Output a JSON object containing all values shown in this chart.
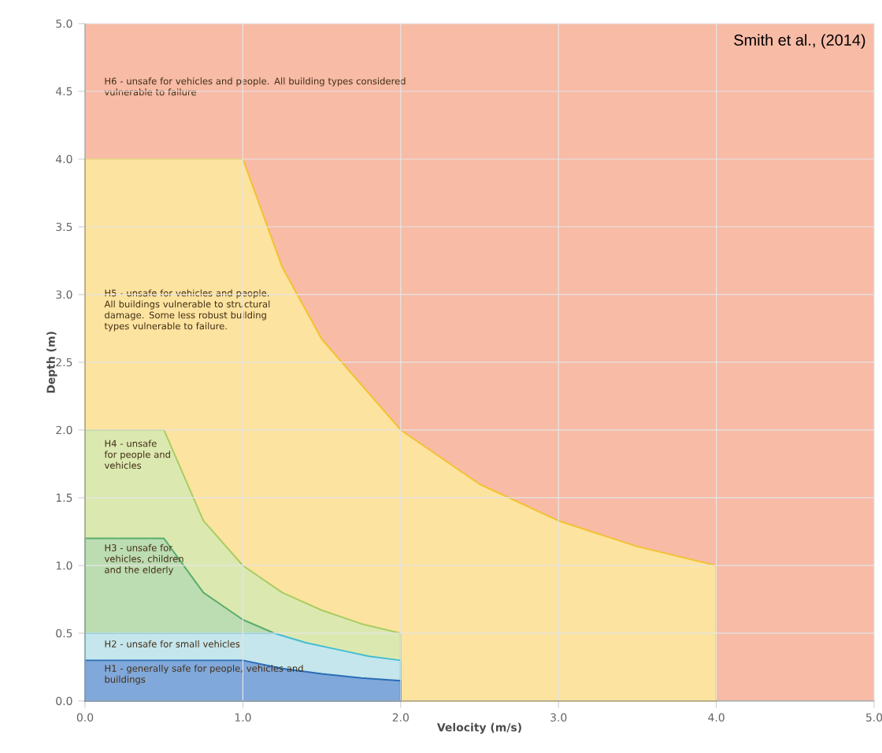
{
  "chart_data": {
    "type": "area",
    "xlabel": "Velocity (m/s)",
    "ylabel": "Depth (m)",
    "xlim": [
      0,
      5
    ],
    "ylim": [
      0,
      5
    ],
    "xticks": [
      {
        "value": 0,
        "label": "0.0"
      },
      {
        "value": 1,
        "label": "1.0"
      },
      {
        "value": 2,
        "label": "2.0"
      },
      {
        "value": 3,
        "label": "3.0"
      },
      {
        "value": 4,
        "label": "4.0"
      },
      {
        "value": 5,
        "label": "5.0"
      }
    ],
    "yticks": [
      {
        "value": 0,
        "label": "0.0"
      },
      {
        "value": 0.5,
        "label": "0.5"
      },
      {
        "value": 1,
        "label": "1.0"
      },
      {
        "value": 1.5,
        "label": "1.5"
      },
      {
        "value": 2,
        "label": "2.0"
      },
      {
        "value": 2.5,
        "label": "2.5"
      },
      {
        "value": 3,
        "label": "3.0"
      },
      {
        "value": 3.5,
        "label": "3.5"
      },
      {
        "value": 4,
        "label": "4.0"
      },
      {
        "value": 4.5,
        "label": "4.5"
      },
      {
        "value": 5,
        "label": "5.0"
      }
    ],
    "grid": true,
    "bands": [
      {
        "axis": "y",
        "from": 0,
        "to": 5,
        "color": "#f7bba6",
        "label": "H6 - unsafe for vehicles and people. All building types considered vulnerable to failure"
      }
    ],
    "series": [
      {
        "color": "#fce39f",
        "x": [
          0,
          1,
          1.25,
          1.5,
          2,
          2.5,
          3,
          3.5,
          4,
          4
        ],
        "values": [
          4,
          4,
          3.2,
          2.67,
          2,
          1.6,
          1.33,
          1.14,
          1,
          0
        ]
      },
      {
        "color": "#dbe9b0",
        "x": [
          0,
          0.5,
          0.75,
          1,
          1.25,
          1.5,
          1.75,
          2,
          2
        ],
        "values": [
          2,
          2,
          1.33,
          1,
          0.8,
          0.67,
          0.57,
          0.5,
          0
        ]
      },
      {
        "color": "#bcdcb2",
        "x": [
          0,
          0.5,
          0.75,
          1,
          1.2
        ],
        "values": [
          1.2,
          1.2,
          0.8,
          0.6,
          0.5
        ]
      },
      {
        "color": "#c4e6ec",
        "x": [
          0,
          1.2,
          1.4,
          1.6,
          1.8,
          2,
          2
        ],
        "values": [
          0.5,
          0.5,
          0.43,
          0.38,
          0.33,
          0.3,
          0
        ]
      },
      {
        "color": "#80a8da",
        "x": [
          0,
          1,
          1.25,
          1.5,
          1.75,
          2,
          2
        ],
        "values": [
          0.3,
          0.3,
          0.24,
          0.2,
          0.17,
          0.15,
          0
        ]
      }
    ],
    "annotations": [
      "H5 - unsafe for vehicles and people. All buildings vulnerable to structural damage. Some less robust building types vulnerable to failure.",
      "H4 - unsafe for people and vehicles",
      "H3 - unsafe for vehicles, children and the elderly",
      "H2 - unsafe for small vehicles",
      "H1 - generally safe for people, vehicles and buildings",
      "Smith et al., (2014)"
    ]
  }
}
